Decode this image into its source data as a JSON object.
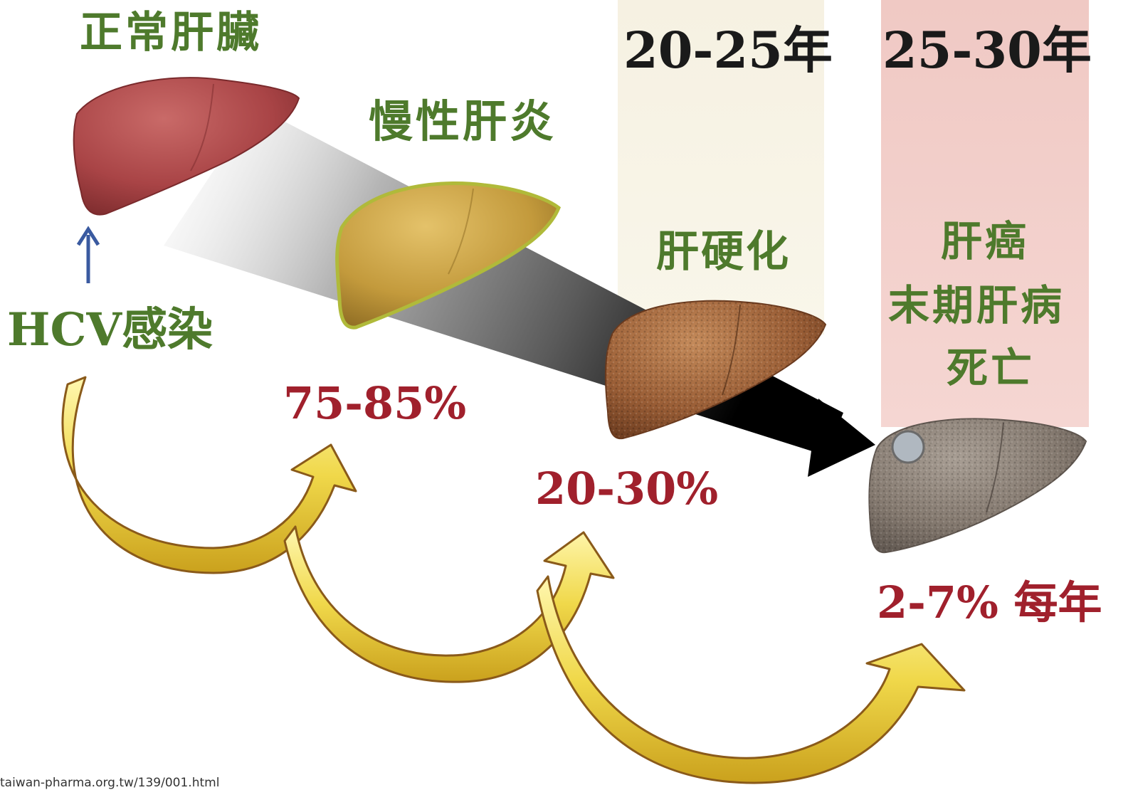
{
  "labels": {
    "normal_liver": "正常肝臟",
    "chronic_hepatitis": "慢性肝炎",
    "cirrhosis": "肝硬化",
    "hcv_infection": "HCV感染",
    "liver_cancer": "肝癌",
    "end_stage": "末期肝病",
    "death": "死亡"
  },
  "periods": {
    "cirrhosis_years": "20-25年",
    "cancer_years": "25-30年"
  },
  "rates": {
    "chronic_rate": "75-85%",
    "cirrhosis_rate": "20-30%",
    "cancer_rate": "2-7% 每年"
  },
  "source": "taiwan-pharma.org.tw/139/001.html",
  "colors": {
    "label_green": "#4e7a2c",
    "rate_red": "#a0202c",
    "arrow_yellow": "#e8c832",
    "arrow_blue": "#3a5aa0",
    "band_cream": "#f7f3e6",
    "band_pink": "#f2cdc8"
  },
  "icons": [
    "normal-liver-icon",
    "chronic-liver-icon",
    "cirrhotic-liver-icon",
    "cancer-liver-icon",
    "up-arrow-icon",
    "curved-arrow-icon",
    "progression-arrow-icon"
  ]
}
